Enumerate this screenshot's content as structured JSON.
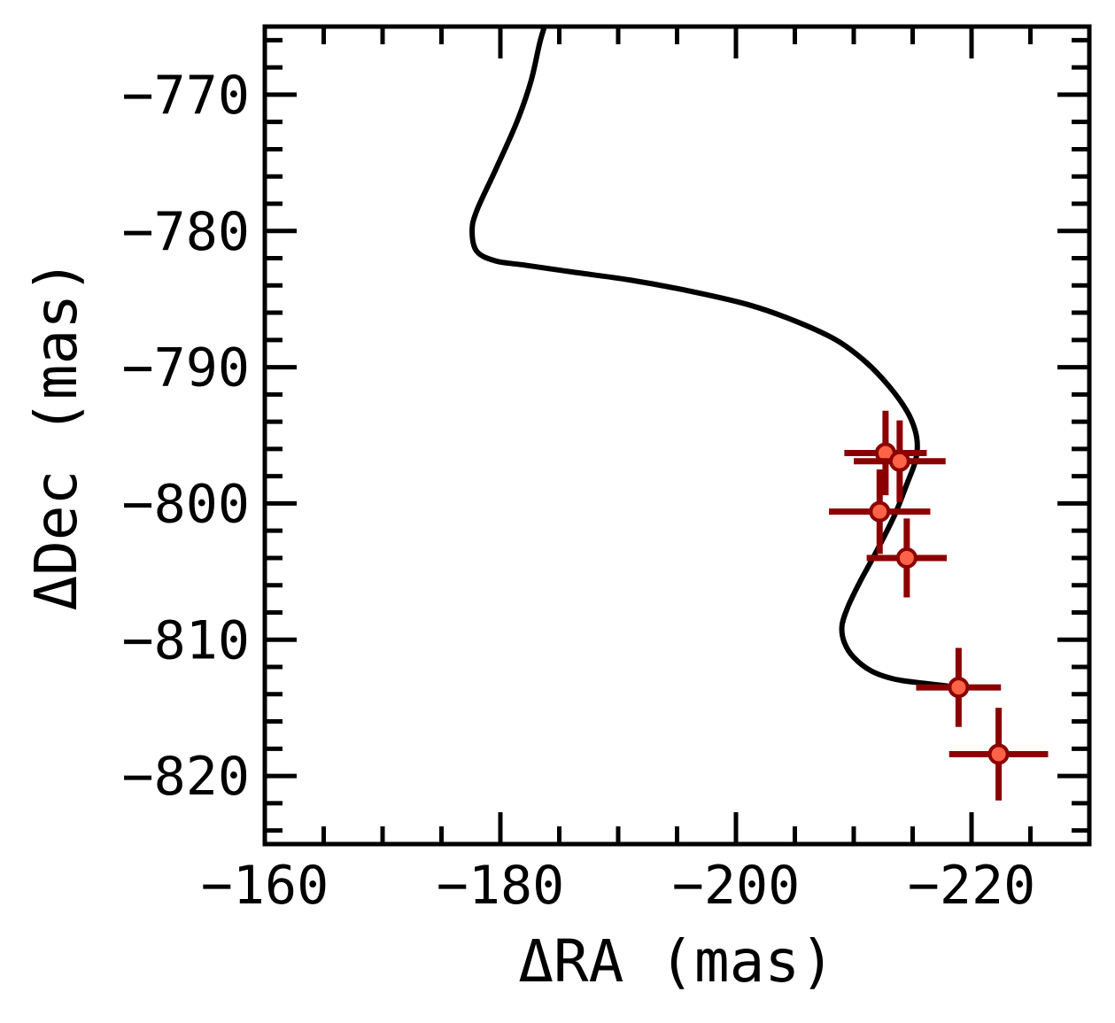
{
  "chart_data": {
    "type": "scatter",
    "title": "",
    "xlabel": "ΔRA (mas)",
    "ylabel": "ΔDec (mas)",
    "xlim": [
      -160,
      -230
    ],
    "ylim": [
      -825,
      -765
    ],
    "x_inverted": true,
    "grid": false,
    "x_ticks": [
      -160,
      -180,
      -200,
      -220
    ],
    "x_tick_labels": [
      "−160",
      "−180",
      "−200",
      "−220"
    ],
    "y_ticks": [
      -770,
      -780,
      -790,
      -800,
      -810,
      -820
    ],
    "y_tick_labels": [
      "−770",
      "−780",
      "−790",
      "−800",
      "−810",
      "−820"
    ],
    "series": [
      {
        "kind": "line",
        "color": "#000000",
        "x": [
          -184.2,
          -183.4,
          -182.6,
          -181.4,
          -179.6,
          -178.0,
          -177.6,
          -178.0,
          -179.6,
          -182.0,
          -186.0,
          -191.0,
          -196.0,
          -201.0,
          -205.0,
          -208.5,
          -211.0,
          -213.0,
          -214.5,
          -215.2,
          -215.4,
          -215.2,
          -214.5,
          -213.5,
          -212.0,
          -210.5,
          -209.5,
          -209.0,
          -209.2,
          -210.0,
          -211.5,
          -213.5,
          -216.0,
          -218.0
        ],
        "y": [
          -763.8,
          -766.0,
          -769.0,
          -772.0,
          -775.5,
          -778.5,
          -780.0,
          -781.5,
          -782.2,
          -782.5,
          -783.0,
          -783.6,
          -784.4,
          -785.4,
          -786.6,
          -788.0,
          -789.6,
          -791.4,
          -793.2,
          -794.6,
          -795.8,
          -797.0,
          -798.6,
          -800.8,
          -803.4,
          -805.8,
          -807.6,
          -809.0,
          -810.2,
          -811.3,
          -812.3,
          -812.9,
          -813.2,
          -813.4
        ]
      },
      {
        "kind": "errorbar",
        "color": "#8b0000",
        "marker_color": "#ff6347",
        "x": [
          -212.7,
          -213.9,
          -212.2,
          -214.5,
          -218.9,
          -222.3
        ],
        "y": [
          -796.3,
          -796.9,
          -800.6,
          -804.0,
          -813.5,
          -818.4
        ],
        "xerr": [
          3.5,
          3.9,
          4.3,
          3.4,
          3.6,
          4.2
        ],
        "yerr": [
          3.1,
          3.0,
          3.1,
          2.9,
          2.9,
          3.4
        ]
      }
    ]
  }
}
